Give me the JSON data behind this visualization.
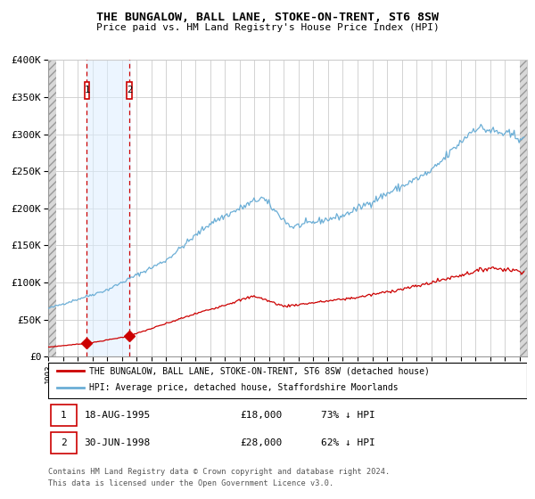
{
  "title": "THE BUNGALOW, BALL LANE, STOKE-ON-TRENT, ST6 8SW",
  "subtitle": "Price paid vs. HM Land Registry's House Price Index (HPI)",
  "ylim": [
    0,
    400000
  ],
  "yticks": [
    0,
    50000,
    100000,
    150000,
    200000,
    250000,
    300000,
    350000,
    400000
  ],
  "ytick_labels": [
    "£0",
    "£50K",
    "£100K",
    "£150K",
    "£200K",
    "£250K",
    "£300K",
    "£350K",
    "£400K"
  ],
  "xlim_start": 1993.0,
  "xlim_end": 2025.5,
  "hpi_color": "#6baed6",
  "price_color": "#cc0000",
  "sale1_date": 1995.625,
  "sale1_price": 18000,
  "sale2_date": 1998.5,
  "sale2_price": 28000,
  "legend_line1": "THE BUNGALOW, BALL LANE, STOKE-ON-TRENT, ST6 8SW (detached house)",
  "legend_line2": "HPI: Average price, detached house, Staffordshire Moorlands",
  "table_row1_num": "1",
  "table_row1_date": "18-AUG-1995",
  "table_row1_price": "£18,000",
  "table_row1_hpi": "73% ↓ HPI",
  "table_row2_num": "2",
  "table_row2_date": "30-JUN-1998",
  "table_row2_price": "£28,000",
  "table_row2_hpi": "62% ↓ HPI",
  "footnote1": "Contains HM Land Registry data © Crown copyright and database right 2024.",
  "footnote2": "This data is licensed under the Open Government Licence v3.0.",
  "shade_color": "#ddeeff"
}
